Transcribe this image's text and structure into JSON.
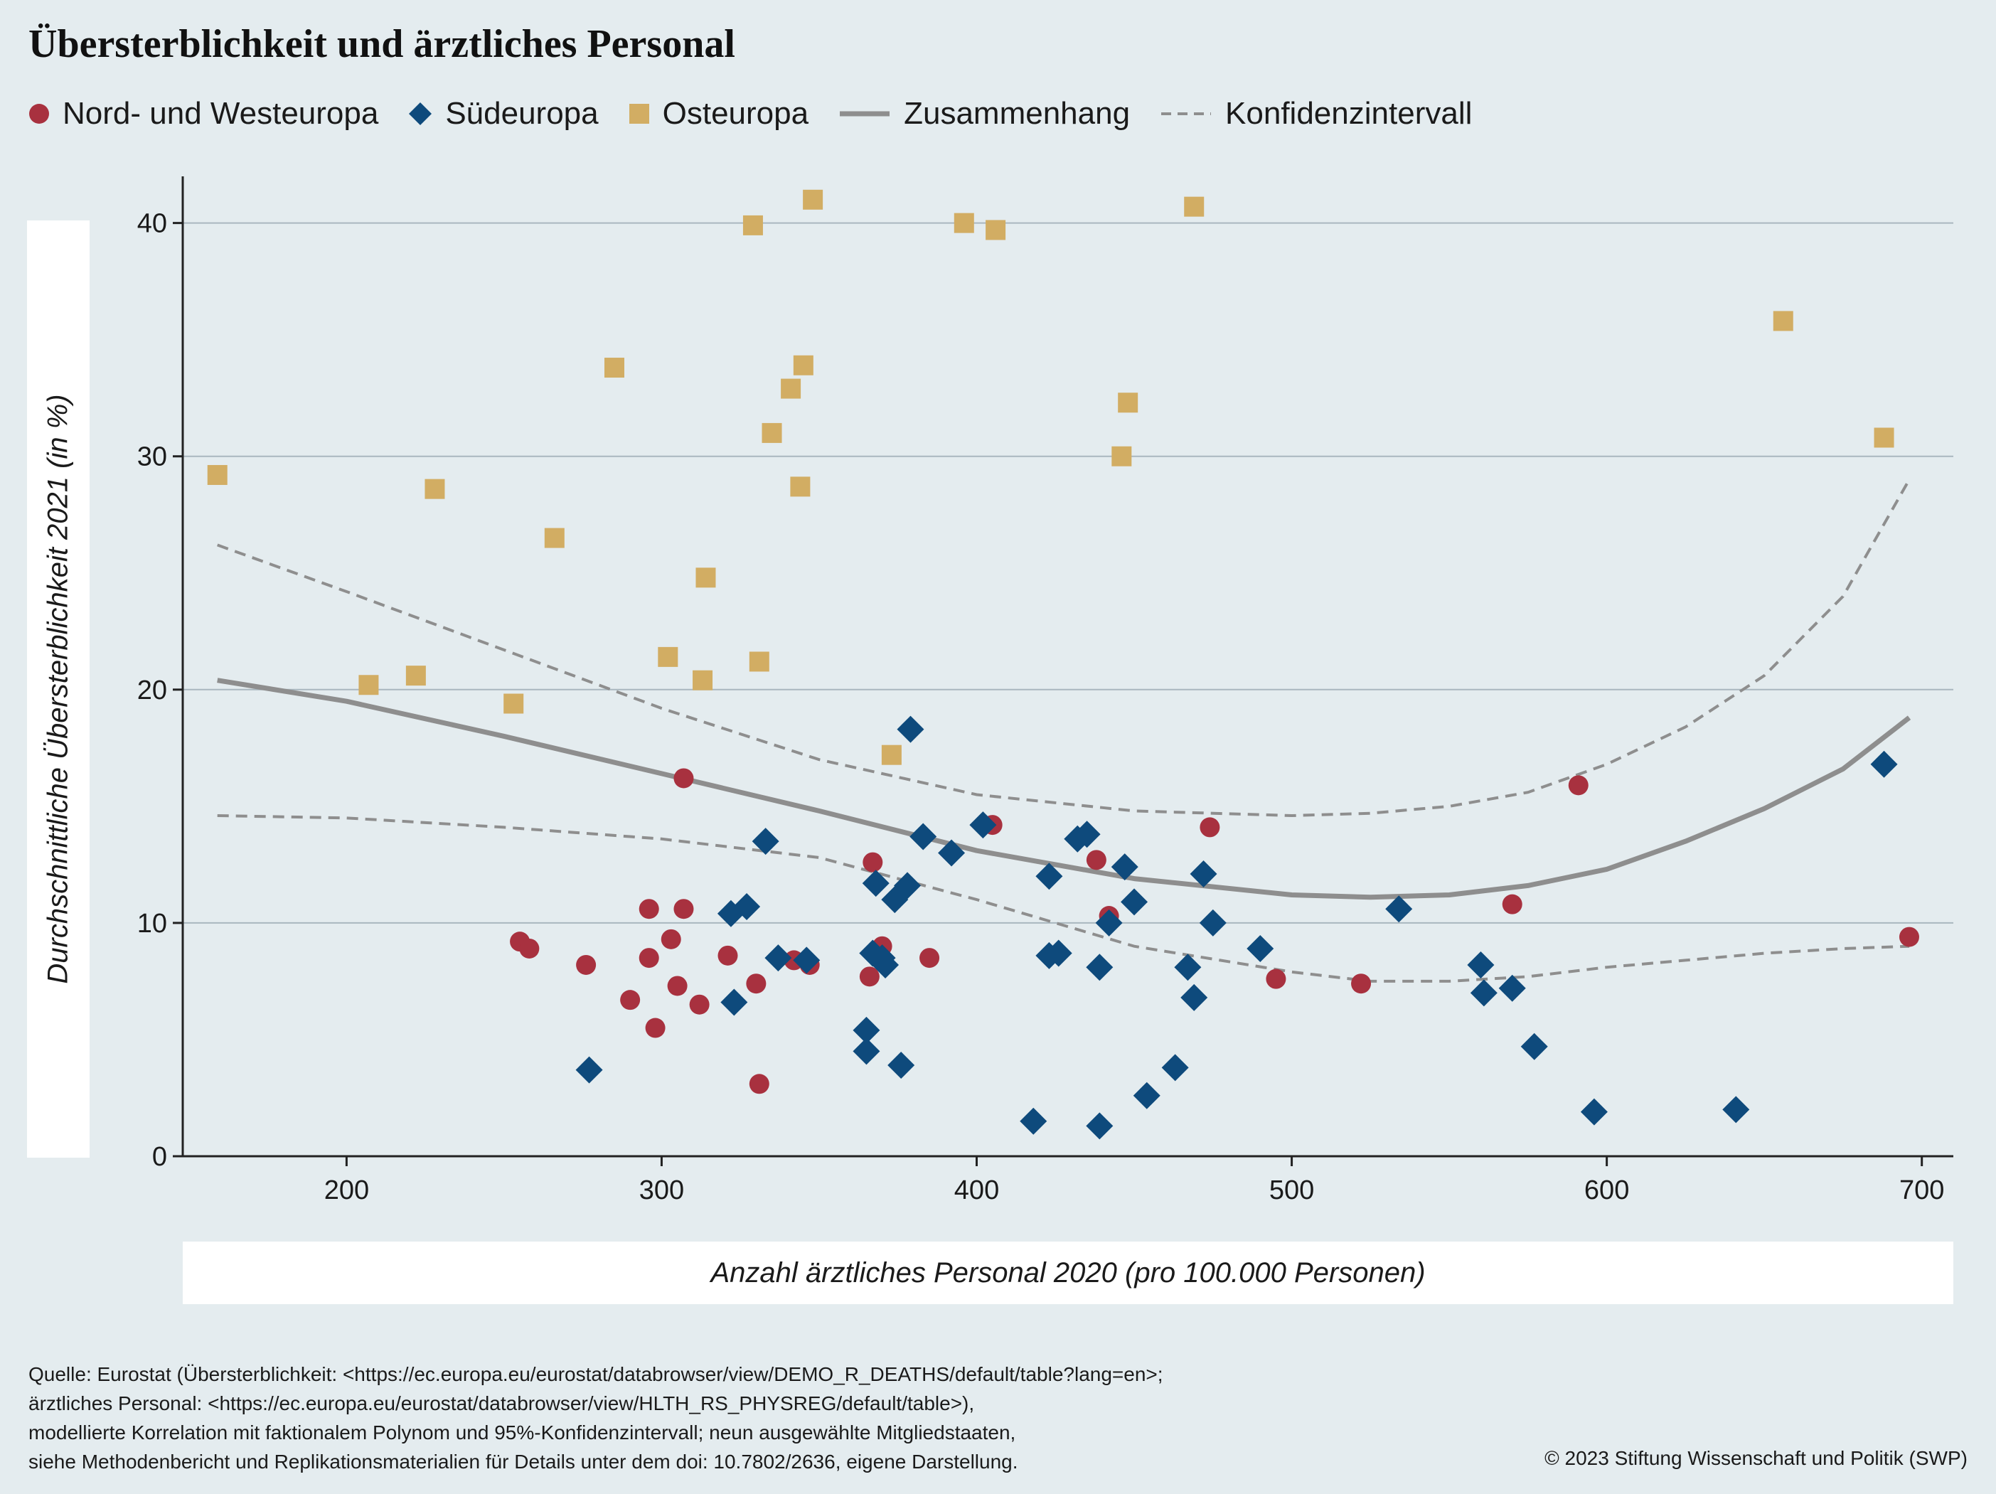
{
  "chart_data": {
    "type": "scatter",
    "title": "Übersterblichkeit und ärztliches Personal",
    "xlabel": "Anzahl ärztliches Personal 2020 (pro 100.000 Personen)",
    "ylabel": "Durchschnittliche Übersterblichkeit 2021 (in %)",
    "xlim": [
      148,
      710
    ],
    "ylim": [
      0,
      42
    ],
    "xticks": [
      200,
      300,
      400,
      500,
      600,
      700
    ],
    "yticks": [
      0,
      10,
      20,
      30,
      40
    ],
    "grid": "horizontal",
    "legend_position": "top-left",
    "series": [
      {
        "name": "Nord- und Westeuropa",
        "marker": "circle",
        "color": "#a8313f",
        "points": [
          [
            255,
            9.2
          ],
          [
            258,
            8.9
          ],
          [
            276,
            8.2
          ],
          [
            290,
            6.7
          ],
          [
            296,
            10.6
          ],
          [
            296,
            8.5
          ],
          [
            298,
            5.5
          ],
          [
            303,
            9.3
          ],
          [
            305,
            7.3
          ],
          [
            307,
            10.6
          ],
          [
            307,
            16.2
          ],
          [
            312,
            6.5
          ],
          [
            321,
            8.6
          ],
          [
            330,
            7.4
          ],
          [
            331,
            3.1
          ],
          [
            342,
            8.4
          ],
          [
            347,
            8.2
          ],
          [
            366,
            7.7
          ],
          [
            367,
            12.6
          ],
          [
            370,
            9.0
          ],
          [
            385,
            8.5
          ],
          [
            405,
            14.2
          ],
          [
            438,
            12.7
          ],
          [
            442,
            10.3
          ],
          [
            474,
            14.1
          ],
          [
            495,
            7.6
          ],
          [
            522,
            7.4
          ],
          [
            570,
            10.8
          ],
          [
            591,
            15.9
          ],
          [
            696,
            9.4
          ]
        ]
      },
      {
        "name": "Südeuropa",
        "marker": "diamond",
        "color": "#0e4a7c",
        "points": [
          [
            277,
            3.7
          ],
          [
            322,
            10.4
          ],
          [
            323,
            6.6
          ],
          [
            327,
            10.7
          ],
          [
            333,
            13.5
          ],
          [
            337,
            8.5
          ],
          [
            346,
            8.4
          ],
          [
            365,
            5.4
          ],
          [
            365,
            4.5
          ],
          [
            367,
            8.7
          ],
          [
            368,
            11.7
          ],
          [
            370,
            8.5
          ],
          [
            371,
            8.2
          ],
          [
            374,
            11.0
          ],
          [
            376,
            3.9
          ],
          [
            378,
            11.6
          ],
          [
            379,
            18.3
          ],
          [
            383,
            13.7
          ],
          [
            392,
            13.0
          ],
          [
            402,
            14.2
          ],
          [
            418,
            1.5
          ],
          [
            423,
            8.6
          ],
          [
            423,
            12.0
          ],
          [
            426,
            8.7
          ],
          [
            432,
            13.6
          ],
          [
            435,
            13.8
          ],
          [
            439,
            1.3
          ],
          [
            439,
            8.1
          ],
          [
            442,
            10.0
          ],
          [
            447,
            12.4
          ],
          [
            450,
            10.9
          ],
          [
            454,
            2.6
          ],
          [
            463,
            3.8
          ],
          [
            467,
            8.1
          ],
          [
            469,
            6.8
          ],
          [
            472,
            12.1
          ],
          [
            475,
            10.0
          ],
          [
            490,
            8.9
          ],
          [
            534,
            10.6
          ],
          [
            560,
            8.2
          ],
          [
            561,
            7.0
          ],
          [
            570,
            7.2
          ],
          [
            577,
            4.7
          ],
          [
            596,
            1.9
          ],
          [
            641,
            2.0
          ],
          [
            688,
            16.8
          ]
        ]
      },
      {
        "name": "Osteuropa",
        "marker": "square",
        "color": "#d2ad63",
        "points": [
          [
            159,
            29.2
          ],
          [
            207,
            20.2
          ],
          [
            222,
            20.6
          ],
          [
            228,
            28.6
          ],
          [
            253,
            19.4
          ],
          [
            266,
            26.5
          ],
          [
            285,
            33.8
          ],
          [
            302,
            21.4
          ],
          [
            313,
            20.4
          ],
          [
            314,
            24.8
          ],
          [
            329,
            39.9
          ],
          [
            331,
            21.2
          ],
          [
            335,
            31.0
          ],
          [
            341,
            32.9
          ],
          [
            344,
            28.7
          ],
          [
            345,
            33.9
          ],
          [
            348,
            41.0
          ],
          [
            373,
            17.2
          ],
          [
            396,
            40.0
          ],
          [
            406,
            39.7
          ],
          [
            446,
            30.0
          ],
          [
            448,
            32.3
          ],
          [
            469,
            40.7
          ],
          [
            656,
            35.8
          ],
          [
            688,
            30.8
          ]
        ]
      },
      {
        "name": "Zusammenhang",
        "type": "line",
        "style": "solid",
        "color": "#8e8e8e",
        "points": [
          [
            159,
            20.4
          ],
          [
            200,
            19.5
          ],
          [
            250,
            18.0
          ],
          [
            300,
            16.4
          ],
          [
            350,
            14.8
          ],
          [
            400,
            13.1
          ],
          [
            450,
            11.9
          ],
          [
            500,
            11.2
          ],
          [
            525,
            11.1
          ],
          [
            550,
            11.2
          ],
          [
            575,
            11.6
          ],
          [
            600,
            12.3
          ],
          [
            625,
            13.5
          ],
          [
            650,
            14.9
          ],
          [
            675,
            16.6
          ],
          [
            696,
            18.8
          ]
        ]
      },
      {
        "name": "Konfidenzintervall",
        "type": "line",
        "style": "dashed",
        "color": "#8e8e8e",
        "upper": [
          [
            159,
            26.2
          ],
          [
            200,
            24.2
          ],
          [
            250,
            21.7
          ],
          [
            300,
            19.2
          ],
          [
            350,
            17.0
          ],
          [
            400,
            15.5
          ],
          [
            450,
            14.8
          ],
          [
            500,
            14.6
          ],
          [
            525,
            14.7
          ],
          [
            550,
            15.0
          ],
          [
            575,
            15.6
          ],
          [
            600,
            16.8
          ],
          [
            625,
            18.4
          ],
          [
            650,
            20.6
          ],
          [
            675,
            24.0
          ],
          [
            696,
            29.0
          ]
        ],
        "lower": [
          [
            159,
            14.6
          ],
          [
            200,
            14.5
          ],
          [
            250,
            14.1
          ],
          [
            300,
            13.6
          ],
          [
            350,
            12.8
          ],
          [
            400,
            11.0
          ],
          [
            450,
            9.0
          ],
          [
            500,
            7.9
          ],
          [
            525,
            7.5
          ],
          [
            550,
            7.5
          ],
          [
            575,
            7.7
          ],
          [
            600,
            8.1
          ],
          [
            625,
            8.4
          ],
          [
            650,
            8.7
          ],
          [
            675,
            8.9
          ],
          [
            696,
            9.0
          ]
        ]
      }
    ]
  },
  "legend": [
    {
      "label": "Nord- und Westeuropa",
      "icon": "circle-icon",
      "color": "#a8313f"
    },
    {
      "label": "Südeuropa",
      "icon": "diamond-icon",
      "color": "#0e4a7c"
    },
    {
      "label": "Osteuropa",
      "icon": "square-icon",
      "color": "#d2ad63"
    },
    {
      "label": "Zusammenhang",
      "icon": "solid-line-icon",
      "color": "#8e8e8e"
    },
    {
      "label": "Konfidenzintervall",
      "icon": "dashed-line-icon",
      "color": "#8e8e8e"
    }
  ],
  "source_lines": [
    "Quelle: Eurostat (Übersterblichkeit: <https://ec.europa.eu/eurostat/databrowser/view/DEMO_R_DEATHS/default/table?lang=en>;",
    "ärztliches Personal: <https://ec.europa.eu/eurostat/databrowser/view/HLTH_RS_PHYSREG/default/table>),",
    "modellierte Korrelation mit faktionalem Polynom und 95%-Konfidenzintervall; neun ausgewählte Mitgliedstaaten,",
    "siehe Methodenbericht und Replikationsmaterialien für Details unter dem doi: 10.7802/2636, eigene Darstellung."
  ],
  "copyright": "© 2023 Stiftung Wissenschaft und Politik (SWP)"
}
